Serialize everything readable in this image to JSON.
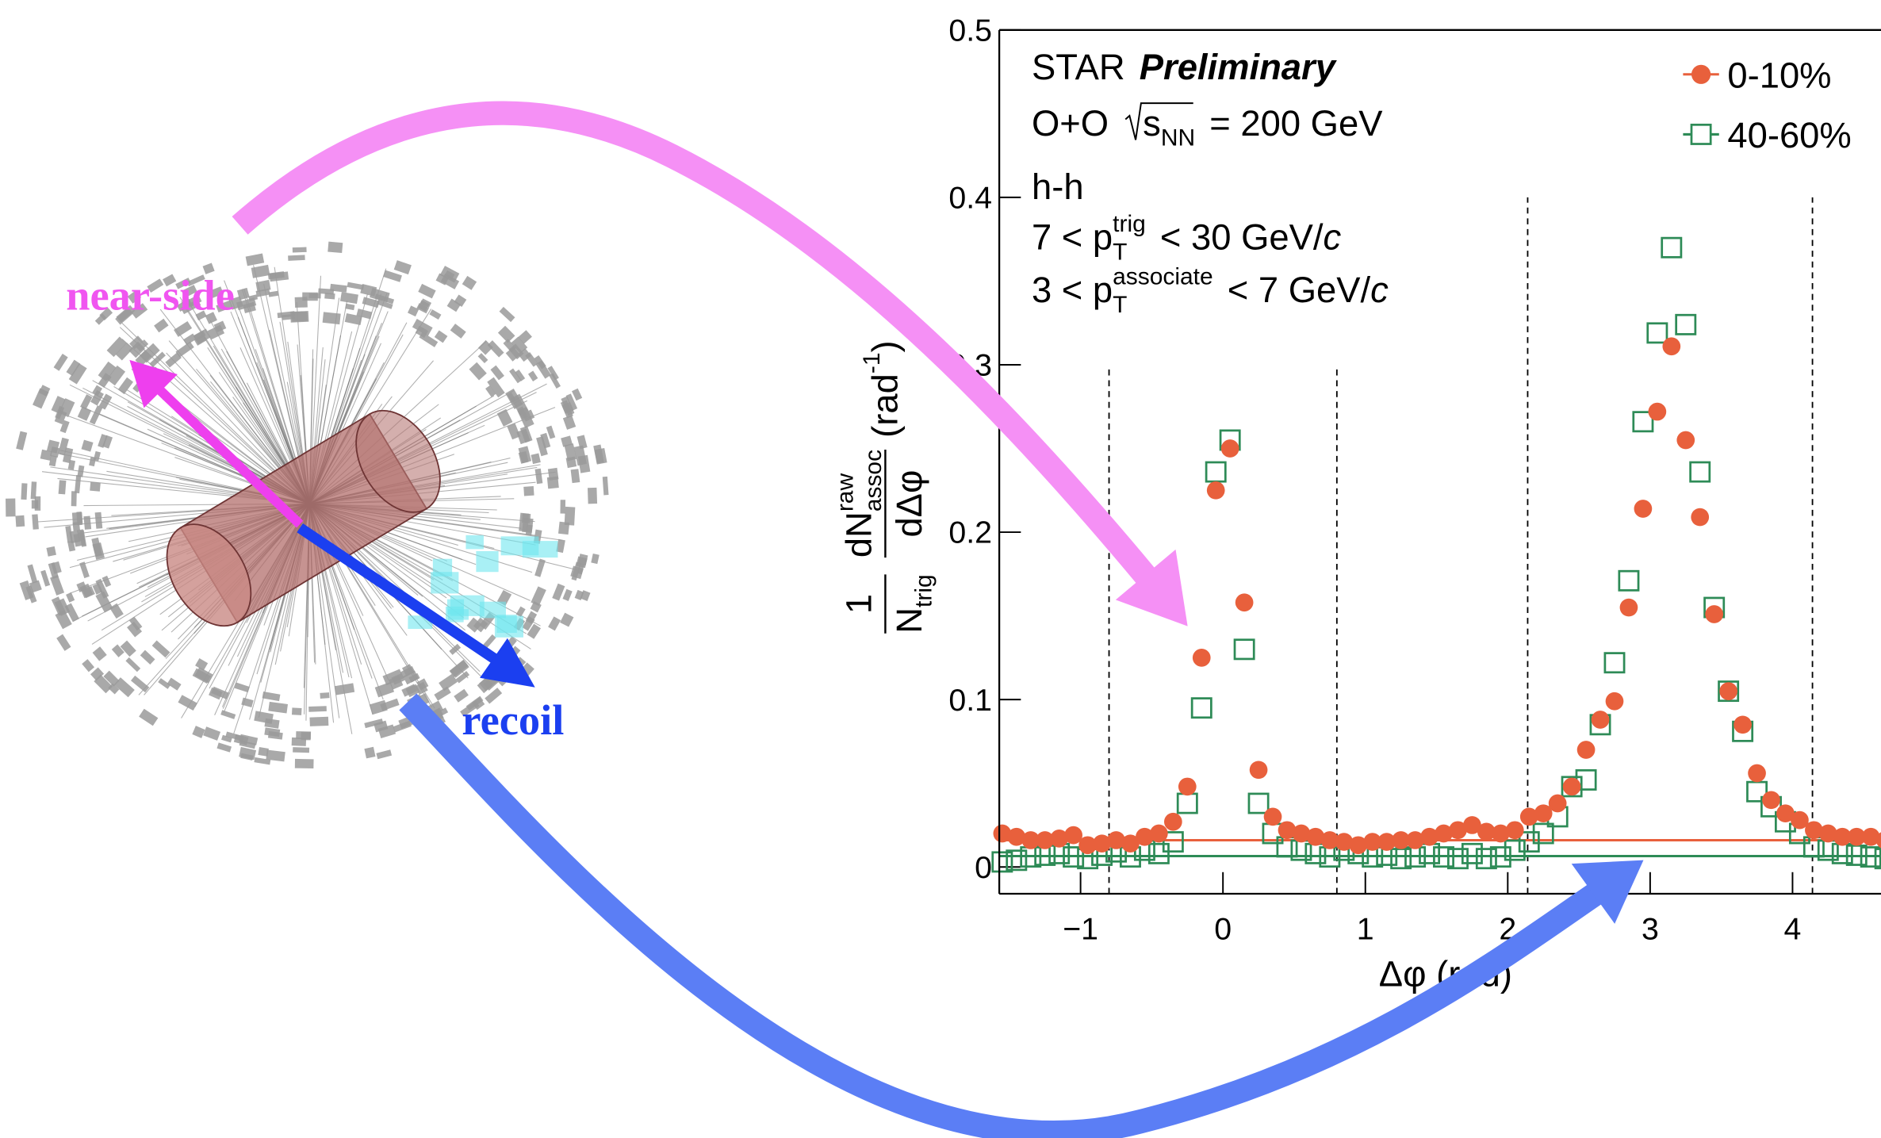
{
  "chart_data": {
    "type": "scatter",
    "xlabel": "Δφ (rad)",
    "ylabel": {
      "factor": {
        "num": [
          {
            "text": "1"
          }
        ],
        "den": [
          {
            "text": "N"
          },
          {
            "text": "trig",
            "style": "sub"
          }
        ]
      },
      "derivative": {
        "num": [
          {
            "text": "dN"
          },
          {
            "text": "assoc",
            "style": "sub"
          },
          {
            "text": "raw",
            "style": "sup"
          }
        ],
        "den": [
          {
            "text": "dΔφ"
          }
        ]
      },
      "unit": [
        {
          "text": "(rad"
        },
        {
          "text": "-1",
          "style": "sup"
        },
        {
          "text": ")"
        }
      ]
    },
    "xlim": [
      -1.5708,
      4.7124
    ],
    "ylim": [
      -0.016,
      0.5
    ],
    "xticks": [
      {
        "value": -1,
        "label": "−1"
      },
      0,
      1,
      2,
      3,
      4
    ],
    "yticks": [
      0,
      0.1,
      0.2,
      0.3,
      0.4,
      0.5
    ],
    "x": [
      -1.55,
      -1.45,
      -1.35,
      -1.25,
      -1.15,
      -1.05,
      -0.95,
      -0.85,
      -0.75,
      -0.65,
      -0.55,
      -0.45,
      -0.35,
      -0.25,
      -0.15,
      -0.05,
      0.05,
      0.15,
      0.25,
      0.35,
      0.45,
      0.55,
      0.65,
      0.75,
      0.85,
      0.95,
      1.05,
      1.15,
      1.25,
      1.35,
      1.45,
      1.55,
      1.65,
      1.75,
      1.85,
      1.95,
      2.05,
      2.15,
      2.25,
      2.35,
      2.45,
      2.55,
      2.65,
      2.75,
      2.85,
      2.95,
      3.05,
      3.15,
      3.25,
      3.35,
      3.45,
      3.55,
      3.65,
      3.75,
      3.85,
      3.95,
      4.05,
      4.15,
      4.25,
      4.35,
      4.45,
      4.55,
      4.65
    ],
    "series": [
      {
        "name": "0-10%",
        "color": "#e8603c",
        "marker": "circle",
        "baseline": 0.016,
        "values": [
          0.02,
          0.018,
          0.016,
          0.016,
          0.017,
          0.019,
          0.013,
          0.014,
          0.016,
          0.014,
          0.018,
          0.02,
          0.027,
          0.048,
          0.125,
          0.225,
          0.25,
          0.158,
          0.058,
          0.03,
          0.022,
          0.02,
          0.018,
          0.016,
          0.015,
          0.013,
          0.015,
          0.015,
          0.016,
          0.016,
          0.018,
          0.02,
          0.022,
          0.025,
          0.021,
          0.02,
          0.022,
          0.03,
          0.032,
          0.038,
          0.048,
          0.07,
          0.088,
          0.099,
          0.155,
          0.214,
          0.272,
          0.311,
          0.255,
          0.209,
          0.151,
          0.105,
          0.085,
          0.056,
          0.04,
          0.032,
          0.028,
          0.022,
          0.02,
          0.018,
          0.018,
          0.018,
          0.016
        ]
      },
      {
        "name": "40-60%",
        "color": "#2e8b57",
        "marker": "open-square",
        "baseline": 0.0065,
        "values": [
          0.003,
          0.004,
          0.006,
          0.007,
          0.008,
          0.006,
          0.005,
          0.007,
          0.009,
          0.006,
          0.01,
          0.008,
          0.015,
          0.038,
          0.095,
          0.236,
          0.255,
          0.13,
          0.038,
          0.02,
          0.012,
          0.01,
          0.008,
          0.006,
          0.01,
          0.008,
          0.006,
          0.007,
          0.005,
          0.006,
          0.008,
          0.006,
          0.005,
          0.008,
          0.005,
          0.006,
          0.01,
          0.015,
          0.02,
          0.03,
          0.048,
          0.052,
          0.085,
          0.122,
          0.171,
          0.266,
          0.319,
          0.37,
          0.324,
          0.236,
          0.155,
          0.105,
          0.081,
          0.045,
          0.036,
          0.027,
          0.02,
          0.012,
          0.01,
          0.008,
          0.007,
          0.006,
          0.005
        ]
      }
    ],
    "vlines": [
      {
        "x": -0.8,
        "ymax": 0.3
      },
      {
        "x": 0.8,
        "ymax": 0.3
      },
      {
        "x": 2.14,
        "ymax": 0.4
      },
      {
        "x": 4.14,
        "ymax": 0.4
      }
    ],
    "annotations": [
      [
        {
          "text": "STAR"
        },
        {
          "text": "Preliminary",
          "style": "bold-italic"
        }
      ],
      [
        {
          "text": "O+O"
        },
        {
          "text": "s",
          "style": "sqrt"
        },
        {
          "text": "NN",
          "style": "sub"
        },
        {
          "text": "= 200 GeV"
        }
      ],
      [
        {
          "text": "h-h"
        }
      ],
      [
        {
          "text": "7 < p"
        },
        {
          "text": "T",
          "style": "sub"
        },
        {
          "text": "trig",
          "style": "sup"
        },
        {
          "text": "< 30 GeV/"
        },
        {
          "text": "c",
          "style": "italic"
        }
      ],
      [
        {
          "text": "3 < p"
        },
        {
          "text": "T",
          "style": "sub"
        },
        {
          "text": "associate",
          "style": "sup"
        },
        {
          "text": "< 7 GeV/"
        },
        {
          "text": "c",
          "style": "italic"
        }
      ]
    ]
  },
  "diagram": {
    "labels": {
      "near_side": "near-side",
      "recoil": "recoil"
    }
  }
}
